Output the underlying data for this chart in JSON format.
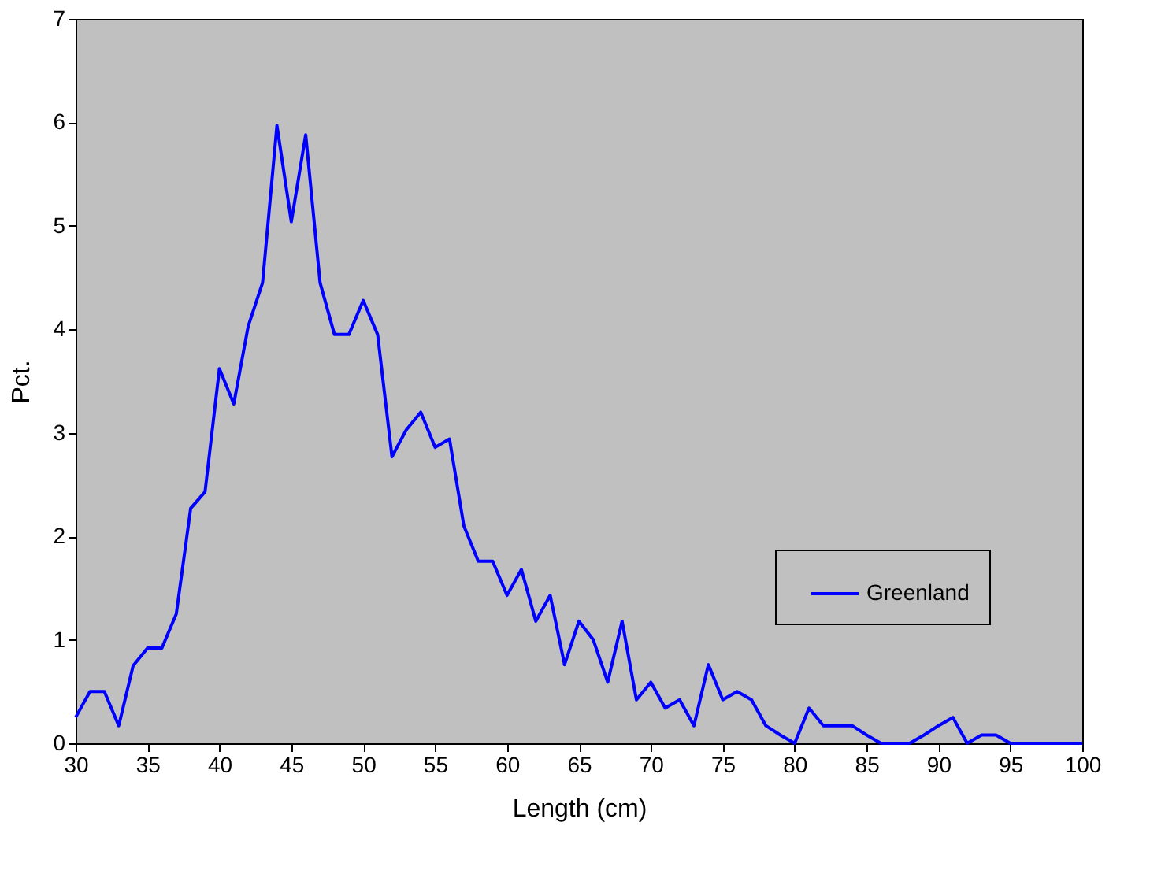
{
  "chart_data": {
    "type": "line",
    "xlabel": "Length (cm)",
    "ylabel": "Pct.",
    "x": [
      30,
      31,
      32,
      33,
      34,
      35,
      36,
      37,
      38,
      39,
      40,
      41,
      42,
      43,
      44,
      45,
      46,
      47,
      48,
      49,
      50,
      51,
      52,
      53,
      54,
      55,
      56,
      57,
      58,
      59,
      60,
      61,
      62,
      63,
      64,
      65,
      66,
      67,
      68,
      69,
      70,
      71,
      72,
      73,
      74,
      75,
      76,
      77,
      78,
      79,
      80,
      81,
      82,
      83,
      84,
      85,
      86,
      87,
      88,
      89,
      90,
      91,
      92,
      93,
      94,
      95,
      96,
      97,
      98,
      99,
      100
    ],
    "series": [
      {
        "name": "Greenland",
        "color": "#0000ff",
        "values": [
          0.25,
          0.5,
          0.5,
          0.17,
          0.75,
          0.92,
          0.92,
          1.25,
          2.27,
          2.43,
          3.62,
          3.28,
          4.03,
          4.45,
          5.97,
          5.04,
          5.88,
          4.45,
          3.95,
          3.95,
          4.28,
          3.95,
          2.77,
          3.03,
          3.2,
          2.86,
          2.94,
          2.1,
          1.76,
          1.76,
          1.43,
          1.68,
          1.18,
          1.43,
          0.76,
          1.18,
          1.0,
          0.59,
          1.18,
          0.42,
          0.59,
          0.34,
          0.42,
          0.17,
          0.76,
          0.42,
          0.5,
          0.42,
          0.17,
          0.08,
          0,
          0.34,
          0.17,
          0.17,
          0.17,
          0.08,
          0,
          0,
          0,
          0.08,
          0.17,
          0.25,
          0,
          0.08,
          0.08,
          0,
          0,
          0,
          0,
          0,
          0
        ]
      }
    ],
    "xlim": [
      30,
      100
    ],
    "xticks": [
      30,
      35,
      40,
      45,
      50,
      55,
      60,
      65,
      70,
      75,
      80,
      85,
      90,
      95,
      100
    ],
    "ylim": [
      0,
      7
    ],
    "yticks": [
      0,
      1,
      2,
      3,
      4,
      5,
      6,
      7
    ],
    "grid": false,
    "legend": "right",
    "marker": "none",
    "line_style": "solid"
  }
}
